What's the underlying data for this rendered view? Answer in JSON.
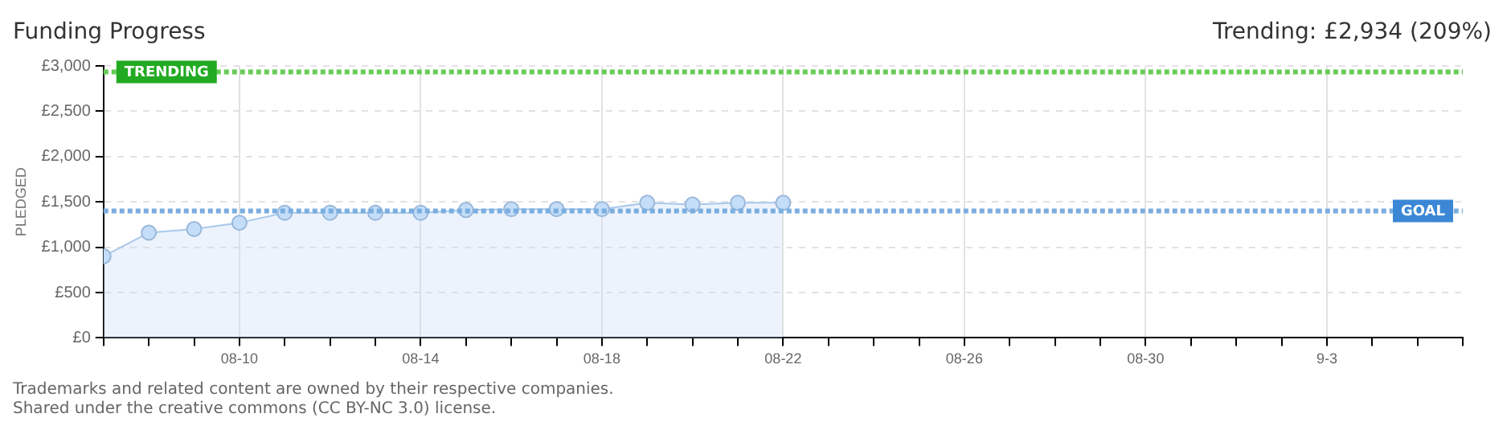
{
  "chart_data": {
    "type": "area",
    "title": "Funding Progress",
    "subtitle": "Trending:  £2,934 (209%)",
    "ylabel": "PLEDGED",
    "x": [
      "--08-07",
      "--08-08",
      "--08-09",
      "--08-10",
      "--08-11",
      "--08-12",
      "--08-13",
      "--08-14",
      "--08-15",
      "--08-16",
      "--08-17",
      "--08-18",
      "--08-19",
      "--08-20",
      "--08-21",
      "--08-22"
    ],
    "series": [
      {
        "color": "#a8c8ec",
        "values": [
          900,
          1160,
          1200,
          1270,
          1380,
          1380,
          1380,
          1380,
          1410,
          1420,
          1420,
          1420,
          1490,
          1470,
          1490,
          1490
        ]
      }
    ],
    "xlim": [
      "--08-07",
      "--09-06"
    ],
    "xticks": [
      {
        "value": "--08-07",
        "label": null
      },
      {
        "value": "--08-08",
        "label": null
      },
      {
        "value": "--08-09",
        "label": null
      },
      {
        "value": "--08-10",
        "label": "08-10"
      },
      {
        "value": "--08-11",
        "label": null
      },
      {
        "value": "--08-12",
        "label": null
      },
      {
        "value": "--08-13",
        "label": null
      },
      {
        "value": "--08-14",
        "label": "08-14"
      },
      {
        "value": "--08-15",
        "label": null
      },
      {
        "value": "--08-16",
        "label": null
      },
      {
        "value": "--08-17",
        "label": null
      },
      {
        "value": "--08-18",
        "label": "08-18"
      },
      {
        "value": "--08-19",
        "label": null
      },
      {
        "value": "--08-20",
        "label": null
      },
      {
        "value": "--08-21",
        "label": null
      },
      {
        "value": "--08-22",
        "label": "08-22"
      },
      {
        "value": "--08-23",
        "label": null
      },
      {
        "value": "--08-24",
        "label": null
      },
      {
        "value": "--08-25",
        "label": null
      },
      {
        "value": "--08-26",
        "label": "08-26"
      },
      {
        "value": "--08-27",
        "label": null
      },
      {
        "value": "--08-28",
        "label": null
      },
      {
        "value": "--08-29",
        "label": null
      },
      {
        "value": "--08-30",
        "label": "08-30"
      },
      {
        "value": "--08-31",
        "label": null
      },
      {
        "value": "--09-01",
        "label": null
      },
      {
        "value": "--09-02",
        "label": null
      },
      {
        "value": "--09-03",
        "label": "9-3"
      },
      {
        "value": "--09-04",
        "label": null
      },
      {
        "value": "--09-05",
        "label": null
      },
      {
        "value": "--09-06",
        "label": null
      }
    ],
    "ylim": [
      0,
      3000
    ],
    "yticks": [
      {
        "value": 0,
        "label": "£0"
      },
      {
        "value": 500,
        "label": "£500"
      },
      {
        "value": 1000,
        "label": "£1,000"
      },
      {
        "value": 1500,
        "label": "£1,500"
      },
      {
        "value": 2000,
        "label": "£2,000"
      },
      {
        "value": 2500,
        "label": "£2,500"
      },
      {
        "value": 3000,
        "label": "£3,000"
      }
    ],
    "ref_lines": [
      {
        "axis": "y",
        "value": 2934,
        "label": "TRENDING",
        "color": "#66cc55",
        "line_style": "dotted"
      },
      {
        "axis": "y",
        "value": 1400,
        "label": "GOAL",
        "color": "#7aaee0",
        "line_style": "dotted"
      }
    ],
    "grid": true,
    "marker": "circle",
    "legend": false,
    "annotations": [
      "Trademarks and related content are owned by their respective companies.",
      "Shared under the creative commons (CC BY-NC 3.0) license."
    ]
  }
}
